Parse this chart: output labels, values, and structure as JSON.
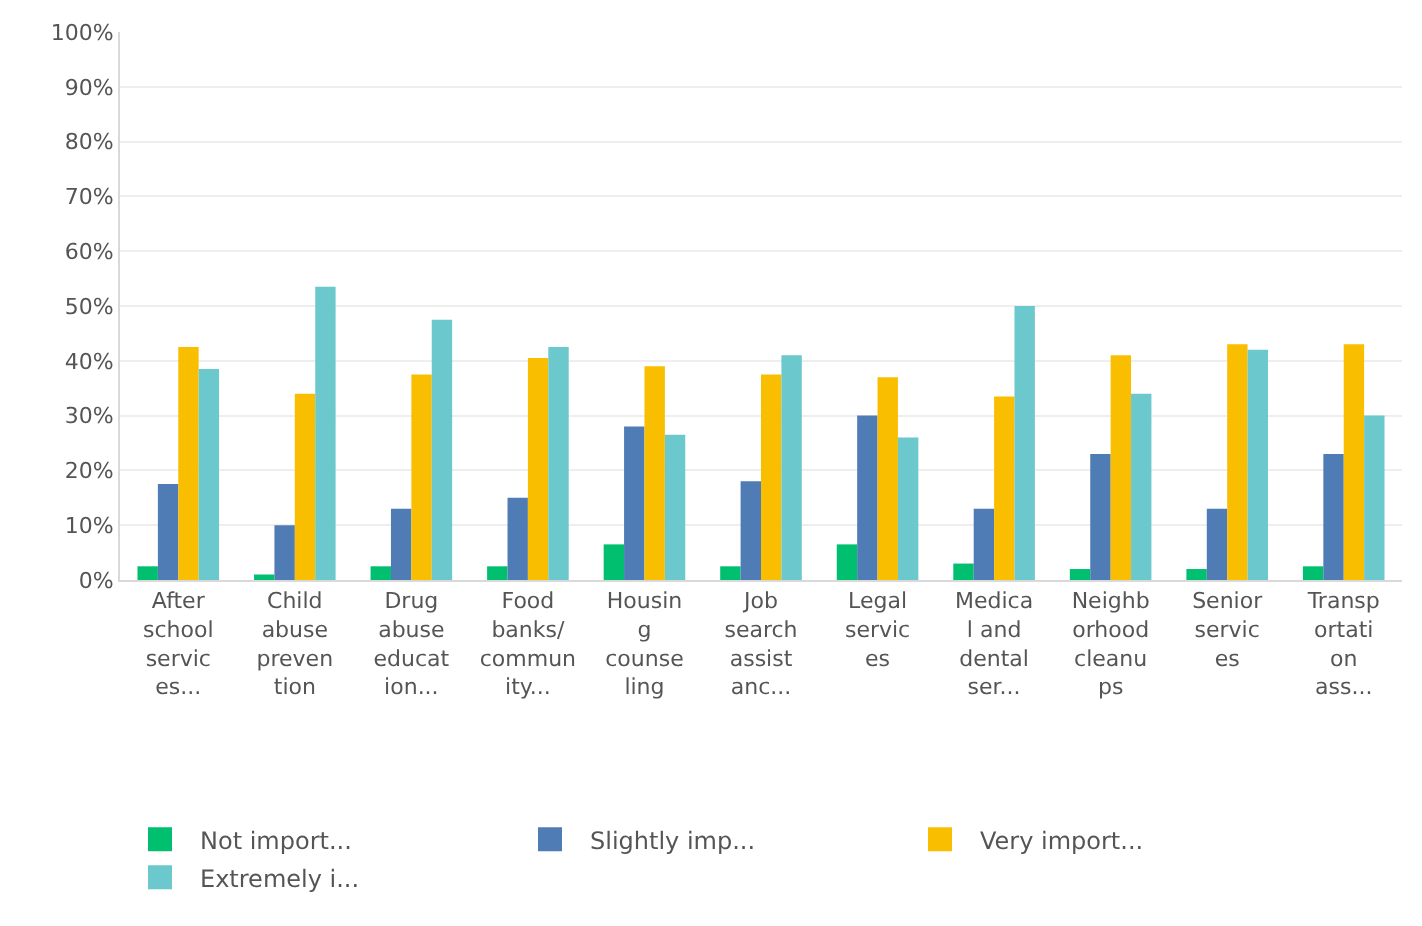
{
  "chart_data": {
    "type": "bar",
    "categories": [
      "After\nschool\nservic\nes...",
      "Child\nabuse\npreven\ntion",
      "Drug\nabuse\neducat\nion...",
      "Food\nbanks/\ncommun\nity...",
      "Housin\ng\ncounse\nling",
      "Job\nsearch\nassist\nanc...",
      "Legal\nservic\nes",
      "Medica\nl and\ndental\nser...",
      "Neighb\norhood\ncleanu\nps",
      "Senior\nservic\nes",
      "Transp\nortati\non\nass..."
    ],
    "series": [
      {
        "name": "Not import...",
        "color": "#00bf6f",
        "values": [
          2.5,
          1,
          2.5,
          2.5,
          6.5,
          2.5,
          6.5,
          3,
          2,
          2,
          2.5
        ]
      },
      {
        "name": "Slightly imp...",
        "color": "#507cb6",
        "values": [
          17.5,
          10,
          13,
          15,
          28,
          18,
          30,
          13,
          23,
          13,
          23
        ]
      },
      {
        "name": "Very import...",
        "color": "#f9be00",
        "values": [
          42.5,
          34,
          37.5,
          40.5,
          39,
          37.5,
          37,
          33.5,
          41,
          43,
          43
        ]
      },
      {
        "name": "Extremely i...",
        "color": "#6bc8cd",
        "values": [
          38.5,
          53.5,
          47.5,
          42.5,
          26.5,
          41,
          26,
          50,
          34,
          42,
          30
        ]
      }
    ],
    "ylim": [
      0,
      100
    ],
    "yticks": [
      {
        "value": 0,
        "label": "0%"
      },
      {
        "value": 10,
        "label": "10%"
      },
      {
        "value": 20,
        "label": "20%"
      },
      {
        "value": 30,
        "label": "30%"
      },
      {
        "value": 40,
        "label": "40%"
      },
      {
        "value": 50,
        "label": "50%"
      },
      {
        "value": 60,
        "label": "60%"
      },
      {
        "value": 70,
        "label": "70%"
      },
      {
        "value": 80,
        "label": "80%"
      },
      {
        "value": 90,
        "label": "90%"
      },
      {
        "value": 100,
        "label": "100%"
      }
    ],
    "grid": "y",
    "legend": "bottom"
  }
}
